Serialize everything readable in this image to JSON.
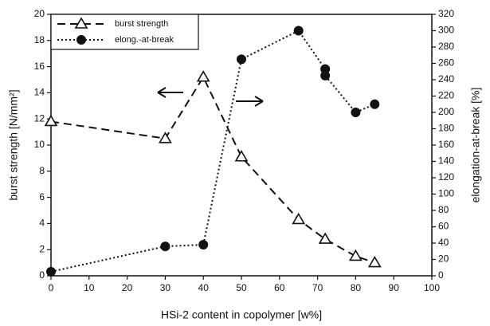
{
  "chart_data": {
    "type": "line",
    "xlabel": "HSi-2 content in copolymer [w%]",
    "ylabel": "burst strength [N/mm²]",
    "y2label": "elongation-at-break [%]",
    "xlim": [
      0,
      100
    ],
    "xticks": [
      0,
      10,
      20,
      30,
      40,
      50,
      60,
      70,
      80,
      90,
      100
    ],
    "ylim": [
      0,
      20
    ],
    "yticks": [
      0,
      2,
      4,
      6,
      8,
      10,
      12,
      14,
      16,
      18,
      20
    ],
    "y2lim": [
      0,
      320
    ],
    "y2ticks": [
      0,
      20,
      40,
      60,
      80,
      100,
      120,
      140,
      160,
      180,
      200,
      220,
      240,
      260,
      280,
      300,
      320
    ],
    "legend": "upper left",
    "series": [
      {
        "name": "burst strength",
        "color": "#111111",
        "marker": "triangle",
        "linestyle": "dashed",
        "x": [
          0,
          30,
          40,
          50,
          65,
          72,
          80,
          85
        ],
        "values": [
          11.8,
          10.5,
          15.2,
          9.1,
          4.3,
          2.8,
          1.5,
          1.0
        ]
      },
      {
        "name": "elong.-at-break",
        "color": "#111111",
        "marker": "circle",
        "linestyle": "dotted",
        "axis": "y2",
        "x": [
          0,
          30,
          40,
          50,
          65,
          72,
          72,
          80,
          85
        ],
        "values": [
          5,
          36,
          38,
          265,
          300,
          253,
          245,
          200,
          210
        ]
      }
    ]
  }
}
